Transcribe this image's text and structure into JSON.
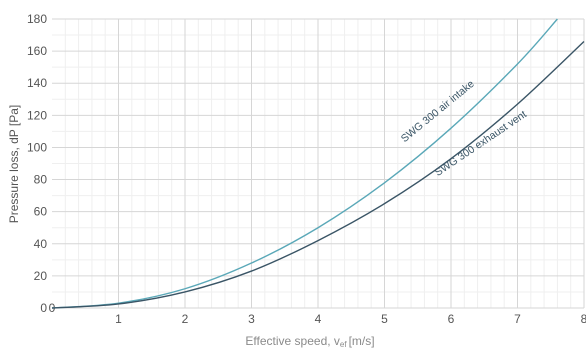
{
  "chart_data": {
    "type": "line",
    "xlabel": "Effective speed, vef [m/s]",
    "xlabel_main": "Effective speed, v",
    "xlabel_sub": "ef",
    "xlabel_unit": "[m/s]",
    "ylabel": "Pressure loss, dP [Pa]",
    "xlim": [
      0,
      8
    ],
    "ylim": [
      0,
      180
    ],
    "x_ticks": [
      1,
      2,
      3,
      4,
      5,
      6,
      7,
      8
    ],
    "y_ticks": [
      0,
      20,
      40,
      60,
      80,
      100,
      120,
      140,
      160,
      180
    ],
    "origin_x_label": "0",
    "grid": true,
    "series": [
      {
        "name": "SWG 300 air intake",
        "color": "#5aa8b8",
        "x": [
          0,
          1,
          2,
          3,
          4,
          5,
          6,
          7,
          7.6
        ],
        "y": [
          0,
          3,
          12,
          28,
          50,
          78,
          112,
          152,
          180
        ]
      },
      {
        "name": "SWG 300 exhaust vent",
        "color": "#3a5566",
        "x": [
          0,
          1,
          2,
          3,
          4,
          5,
          6,
          7,
          8
        ],
        "y": [
          0,
          2.5,
          10,
          23,
          42,
          65,
          93,
          127,
          166
        ]
      }
    ]
  }
}
